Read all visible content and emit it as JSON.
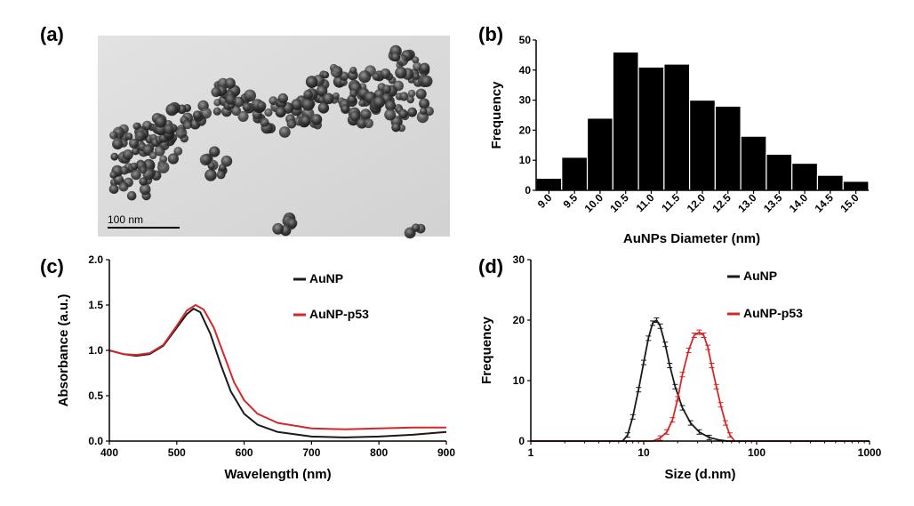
{
  "panel_labels": [
    "(a)",
    "(b)",
    "(c)",
    "(d)"
  ],
  "tem": {
    "scale_bar_label": "100 nm"
  },
  "chart_data": [
    {
      "panel": "(b)",
      "type": "bar",
      "xlabel": "AuNPs Diameter (nm)",
      "ylabel": "Frequency",
      "ylim": [
        0,
        50
      ],
      "yticks": [
        "0",
        "10",
        "20",
        "30",
        "40",
        "50"
      ],
      "categories": [
        "9.0",
        "9.5",
        "10.0",
        "10.5",
        "11.0",
        "11.5",
        "12.0",
        "12.5",
        "13.0",
        "13.5",
        "14.0",
        "14.5",
        "15.0"
      ],
      "values": [
        4,
        11,
        24,
        46,
        41,
        42,
        30,
        28,
        18,
        12,
        9,
        5,
        3
      ],
      "bar_color": "#000000"
    },
    {
      "panel": "(c)",
      "type": "line",
      "xlabel": "Wavelength  (nm)",
      "ylabel": "Absorbance  (a.u.)",
      "xlim": [
        400,
        900
      ],
      "ylim": [
        0,
        2
      ],
      "xticks": [
        "400",
        "500",
        "600",
        "700",
        "800",
        "900"
      ],
      "yticks": [
        "0.0",
        "0.5",
        "1.0",
        "1.5",
        "2.0"
      ],
      "legend_position": "top-right",
      "series": [
        {
          "name": "AuNP",
          "color": "#1a1a1a",
          "x": [
            400,
            420,
            440,
            460,
            480,
            500,
            515,
            525,
            535,
            550,
            565,
            580,
            600,
            620,
            650,
            700,
            750,
            800,
            850,
            900
          ],
          "y": [
            1.0,
            0.96,
            0.94,
            0.96,
            1.05,
            1.25,
            1.4,
            1.46,
            1.42,
            1.18,
            0.85,
            0.55,
            0.3,
            0.18,
            0.1,
            0.05,
            0.04,
            0.05,
            0.07,
            0.1
          ]
        },
        {
          "name": "AuNP-p53",
          "color": "#d62728",
          "x": [
            400,
            420,
            440,
            460,
            480,
            500,
            515,
            528,
            540,
            555,
            570,
            585,
            600,
            620,
            650,
            700,
            750,
            800,
            850,
            900
          ],
          "y": [
            1.0,
            0.96,
            0.95,
            0.97,
            1.06,
            1.27,
            1.44,
            1.5,
            1.45,
            1.25,
            0.95,
            0.65,
            0.45,
            0.3,
            0.2,
            0.14,
            0.13,
            0.14,
            0.15,
            0.15
          ]
        }
      ]
    },
    {
      "panel": "(d)",
      "type": "line",
      "xlabel": "Size (d.nm)",
      "ylabel": "Frequency",
      "xscale": "log",
      "xlim": [
        1,
        1000
      ],
      "ylim": [
        0,
        30
      ],
      "xticks": [
        "1",
        "10",
        "100",
        "1000"
      ],
      "yticks": [
        "0",
        "10",
        "20",
        "30"
      ],
      "legend_position": "top-center",
      "series": [
        {
          "name": "AuNP",
          "color": "#1a1a1a",
          "x": [
            1,
            6.5,
            7.2,
            8,
            9,
            10,
            11,
            12,
            13,
            14,
            15.5,
            17,
            19,
            22,
            26,
            31,
            38,
            46,
            55,
            1000
          ],
          "y": [
            0,
            0,
            1,
            4,
            8.5,
            13,
            17,
            19.5,
            20,
            19,
            16,
            12.5,
            9,
            5.5,
            3,
            1.5,
            0.6,
            0.2,
            0,
            0
          ]
        },
        {
          "name": "AuNP-p53",
          "color": "#d62728",
          "x": [
            1,
            12,
            14,
            16,
            18,
            20,
            22,
            25,
            28,
            31,
            34,
            37,
            40,
            44,
            48,
            53,
            58,
            64,
            1000
          ],
          "y": [
            0,
            0,
            0.5,
            1.5,
            3.5,
            7,
            11,
            15,
            17.5,
            18,
            17.5,
            15.5,
            12.5,
            9,
            6,
            3,
            1,
            0,
            0
          ]
        }
      ]
    }
  ]
}
